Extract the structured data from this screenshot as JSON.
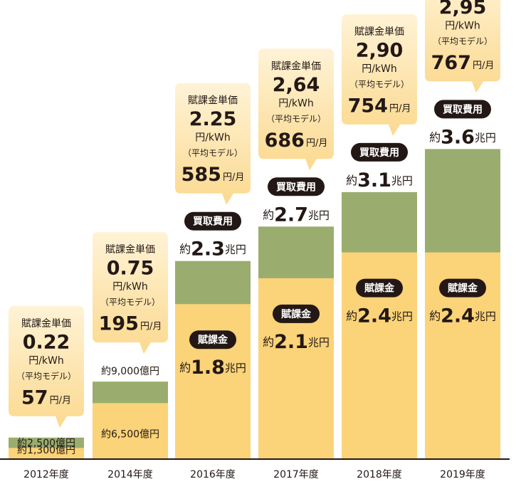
{
  "chart_data": {
    "type": "bar",
    "categories": [
      "2012年度",
      "2014年度",
      "2016年度",
      "2017年度",
      "2018年度",
      "2019年度"
    ],
    "series": [
      {
        "name": "買取費用",
        "color": "#9aad6f",
        "values": [
          2500,
          9000,
          23000,
          27000,
          31000,
          36000
        ],
        "value_labels": [
          "約2,500億円",
          "約9,000億円",
          "約2.3兆円",
          "約2.7兆円",
          "約3.1兆円",
          "約3.6兆円"
        ]
      },
      {
        "name": "賦課金",
        "color": "#fbd378",
        "values": [
          1300,
          6500,
          18000,
          21000,
          24000,
          24000
        ],
        "value_labels": [
          "約1,300億円",
          "約6,500億円",
          "約1.8兆円",
          "約2.1兆円",
          "約2.4兆円",
          "約2.4兆円"
        ]
      }
    ],
    "unit_price": {
      "title": "賦課金単価",
      "unit": "円/kWh",
      "model": "（平均モデル）",
      "values": [
        0.22,
        0.75,
        2.25,
        2.64,
        2.9,
        2.95
      ],
      "value_labels": [
        "0.22",
        "0.75",
        "2.25",
        "2,64",
        "2,90",
        "2,95"
      ]
    },
    "monthly": {
      "unit": "円/月",
      "values": [
        57,
        195,
        585,
        686,
        754,
        767
      ]
    }
  }
}
